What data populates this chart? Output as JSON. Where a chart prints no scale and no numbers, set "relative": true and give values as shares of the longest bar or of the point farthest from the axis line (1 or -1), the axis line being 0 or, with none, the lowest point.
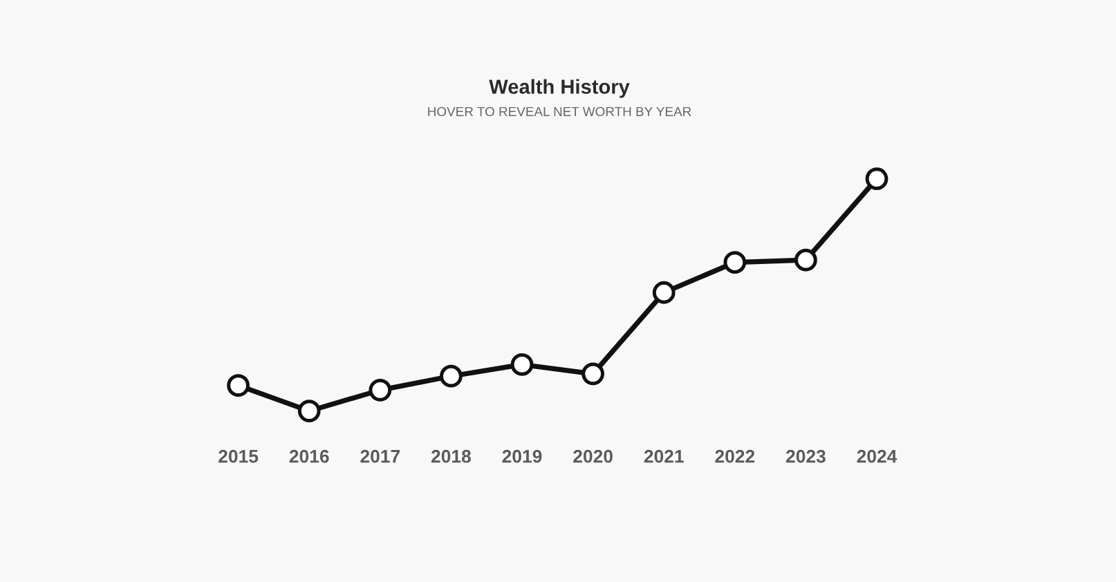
{
  "chart_data": {
    "type": "line",
    "title": "Wealth History",
    "subtitle": "HOVER TO REVEAL NET WORTH BY YEAR",
    "categories": [
      "2015",
      "2016",
      "2017",
      "2018",
      "2019",
      "2020",
      "2021",
      "2022",
      "2023",
      "2024"
    ],
    "relative": true,
    "marker": "circle",
    "line_style": "solid",
    "series": [
      {
        "color": "#111111",
        "values": [
          0.11,
          0,
          0.09,
          0.15,
          0.2,
          0.16,
          0.51,
          0.64,
          0.65,
          1
        ]
      }
    ]
  }
}
